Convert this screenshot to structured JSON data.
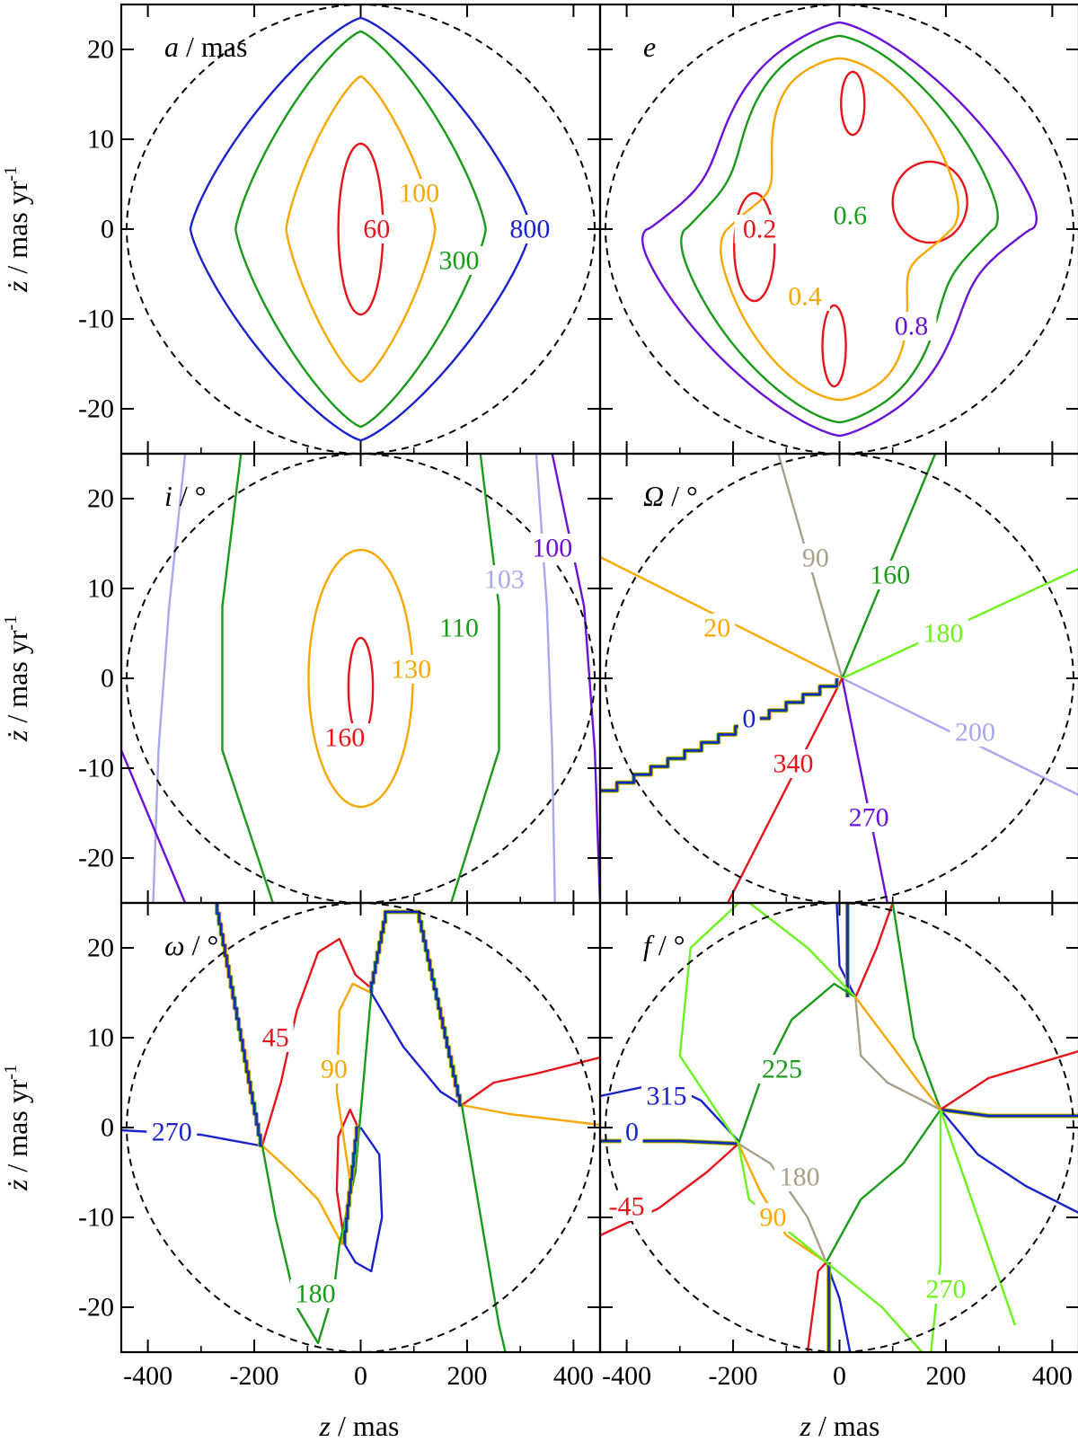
{
  "chart_data": {
    "type": "contour-grid",
    "colors": {
      "red": "#e8141c",
      "orange": "#f7a800",
      "green": "#1a9a1a",
      "blue": "#1a22cc",
      "purple": "#6a12d6",
      "lavender": "#a8a8ec",
      "lime": "#6cf21c",
      "taupe": "#a8a08a",
      "boundary": "#000000"
    },
    "x_axis": {
      "label_var": "z",
      "label_unit": " / mas",
      "ticks": [
        -400,
        -200,
        0,
        200,
        400
      ],
      "tick_labels": [
        "-400",
        "-200",
        "0",
        "200",
        "400"
      ],
      "xlim": [
        -450,
        450
      ]
    },
    "y_axis": {
      "label_var": "ż",
      "label_unit": " / mas yr",
      "label_exp": "-1",
      "ticks": [
        20,
        10,
        0,
        -10,
        -20
      ],
      "tick_labels": [
        "20",
        "10",
        "0",
        "-10",
        "-20"
      ],
      "ylim": [
        -25,
        25
      ]
    },
    "boundary": {
      "style": "dashed",
      "description": "region of bound orbits"
    },
    "panels": [
      {
        "id": "a",
        "label_var": "a",
        "label_unit": " / mas",
        "contours": [
          {
            "value": 60,
            "label": "60",
            "color": "red",
            "kind": "ellipse",
            "cx": 0,
            "cy": 0,
            "rx": 42,
            "ry": 9.5,
            "label_at": [
              30,
              0
            ]
          },
          {
            "value": 100,
            "label": "100",
            "color": "orange",
            "kind": "diamond",
            "hx": 140,
            "hy": 17,
            "label_at": [
              110,
              4
            ]
          },
          {
            "value": 300,
            "label": "300",
            "color": "green",
            "kind": "diamond",
            "hx": 235,
            "hy": 22,
            "label_at": [
              185,
              -3.5
            ]
          },
          {
            "value": 800,
            "label": "800",
            "color": "blue",
            "kind": "diamond",
            "hx": 320,
            "hy": 23.5,
            "label_at": [
              318,
              0
            ]
          }
        ]
      },
      {
        "id": "e",
        "label_var": "e",
        "label_unit": "",
        "contours": [
          {
            "value": 0.2,
            "label": "0.2",
            "color": "red",
            "kind": "lobes",
            "level": 0.2,
            "label_at": [
              -150,
              0
            ]
          },
          {
            "value": 0.4,
            "label": "0.4",
            "color": "orange",
            "kind": "lobes",
            "level": 0.4,
            "label_at": [
              -65,
              -7.5
            ]
          },
          {
            "value": 0.6,
            "label": "0.6",
            "color": "green",
            "kind": "lobes",
            "level": 0.6,
            "label_at": [
              20,
              1.5
            ]
          },
          {
            "value": 0.8,
            "label": "0.8",
            "color": "purple",
            "kind": "lobes",
            "level": 0.8,
            "label_at": [
              135,
              -10.8
            ]
          }
        ]
      },
      {
        "id": "i",
        "label_var": "i",
        "label_unit": " / °",
        "contours": [
          {
            "value": 160,
            "label": "160",
            "color": "red",
            "kind": "ellipse",
            "cx": 0,
            "cy": -1,
            "rx": 23,
            "ry": 5.5,
            "label_at": [
              -30,
              -6.6
            ]
          },
          {
            "value": 130,
            "label": "130",
            "color": "orange",
            "kind": "ellipse",
            "cx": 0,
            "cy": 0,
            "rx": 98,
            "ry": 14.3,
            "label_at": [
              95,
              1
            ]
          },
          {
            "value": 110,
            "label": "110",
            "color": "green",
            "kind": "curves",
            "xs": [
              [
                -225,
                -260,
                -260,
                -165
              ],
              [
                225,
                260,
                260,
                170
              ]
            ],
            "label_at": [
              185,
              5.6
            ]
          },
          {
            "value": 103,
            "label": "103",
            "color": "lavender",
            "kind": "curves",
            "xs": [
              [
                -330,
                -360,
                -380,
                -390
              ],
              [
                330,
                350,
                360,
                365
              ]
            ],
            "label_at": [
              270,
              11
            ]
          },
          {
            "value": 100,
            "label": "100",
            "color": "purple",
            "kind": "curves",
            "xs": [
              [
                -450,
                -450,
                -450,
                -330
              ],
              [
                360,
                420,
                440,
                450
              ]
            ],
            "label_at": [
              360,
              14.5
            ]
          }
        ]
      },
      {
        "id": "Omega",
        "label_var": "Ω",
        "label_unit": " / °",
        "center": [
          5,
          0
        ],
        "contours": [
          {
            "value": 20,
            "label": "20",
            "color": "orange",
            "kind": "ray",
            "to": [
              -450,
              13.5
            ],
            "label_at": [
              -230,
              5.6
            ]
          },
          {
            "value": 90,
            "label": "90",
            "color": "taupe",
            "kind": "ray",
            "to": [
              -115,
              25
            ],
            "label_at": [
              -45,
              13.4
            ]
          },
          {
            "value": 160,
            "label": "160",
            "color": "green",
            "kind": "ray",
            "to": [
              180,
              25
            ],
            "label_at": [
              95,
              11.5
            ]
          },
          {
            "value": 180,
            "label": "180",
            "color": "lime",
            "kind": "ray",
            "to": [
              450,
              12.2
            ],
            "label_at": [
              195,
              5
            ]
          },
          {
            "value": 200,
            "label": "200",
            "color": "lavender",
            "kind": "ray",
            "to": [
              450,
              -13
            ],
            "label_at": [
              255,
              -6
            ]
          },
          {
            "value": 270,
            "label": "270",
            "color": "purple",
            "kind": "ray",
            "to": [
              90,
              -25
            ],
            "label_at": [
              55,
              -15.5
            ]
          },
          {
            "value": 340,
            "label": "340",
            "color": "red",
            "kind": "ray",
            "to": [
              -210,
              -25
            ],
            "label_at": [
              -87,
              -9.5
            ]
          },
          {
            "value": 0,
            "label": "0",
            "color": "blue",
            "kind": "stair",
            "to": [
              -450,
              -12.5
            ],
            "label_at": [
              -170,
              -4.5
            ]
          }
        ]
      },
      {
        "id": "omega",
        "label_var": "ω",
        "label_unit": " / °",
        "contours": [
          {
            "value": 45,
            "label": "45",
            "color": "red",
            "kind": "omega45",
            "label_at": [
              -160,
              10
            ]
          },
          {
            "value": 90,
            "label": "90",
            "color": "orange",
            "kind": "omega90",
            "label_at": [
              -50,
              6.5
            ]
          },
          {
            "value": 180,
            "label": "180",
            "color": "green",
            "kind": "omega180",
            "label_at": [
              -85,
              -18.5
            ]
          },
          {
            "value": 270,
            "label": "270",
            "color": "blue",
            "kind": "omega270",
            "label_at": [
              -355,
              -0.5
            ]
          }
        ]
      },
      {
        "id": "f",
        "label_var": "f",
        "label_unit": " / °",
        "contours": [
          {
            "value": 315,
            "label": "315",
            "color": "blue",
            "kind": "f315",
            "label_at": [
              -325,
              3.5
            ]
          },
          {
            "value": 0,
            "label": "0",
            "color": "blue",
            "kind": "f0",
            "label_at": [
              -390,
              -0.5
            ]
          },
          {
            "value": -45,
            "label": "-45",
            "color": "red",
            "kind": "fm45",
            "label_at": [
              -400,
              -8.8
            ]
          },
          {
            "value": 225,
            "label": "225",
            "color": "green",
            "kind": "f225",
            "label_at": [
              -108,
              6.5
            ]
          },
          {
            "value": 180,
            "label": "180",
            "color": "taupe",
            "kind": "f180",
            "label_at": [
              -75,
              -5.5
            ]
          },
          {
            "value": 90,
            "label": "90",
            "color": "orange",
            "kind": "f90",
            "label_at": [
              -125,
              -10
            ]
          },
          {
            "value": 270,
            "label": "270",
            "color": "lime",
            "kind": "f270",
            "label_at": [
              200,
              -18
            ]
          }
        ]
      }
    ]
  }
}
